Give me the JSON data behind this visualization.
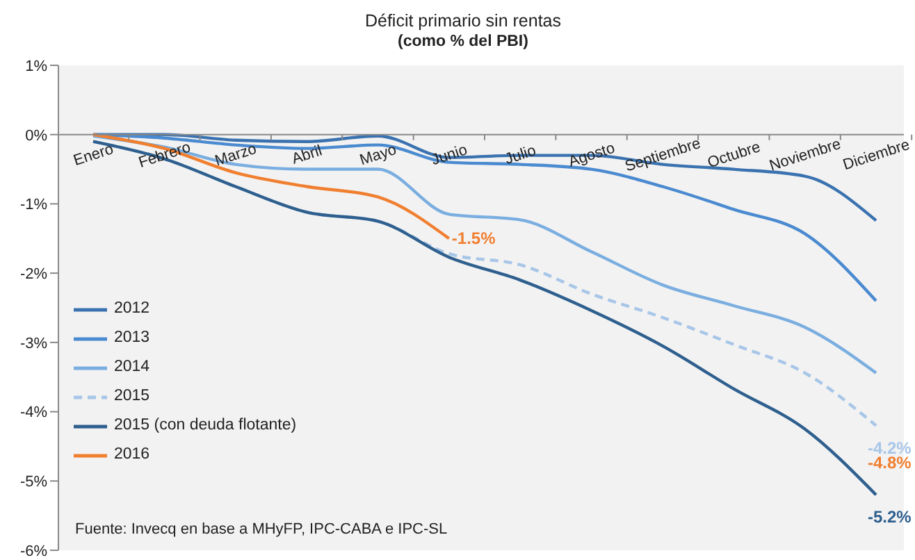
{
  "chart_data": {
    "type": "line",
    "title": "Déficit primario sin rentas",
    "subtitle": "(como % del PBI)",
    "categories": [
      "Enero",
      "Febrero",
      "Marzo",
      "Abril",
      "Mayo",
      "Junio",
      "Julio",
      "Agosto",
      "Septiembre",
      "Octubre",
      "Noviembre",
      "Diciembre"
    ],
    "series": [
      {
        "name": "2012",
        "color": "#3a72b0",
        "values": [
          0,
          0,
          -0.08,
          -0.1,
          -0.02,
          -0.33,
          -0.3,
          -0.3,
          -0.43,
          -0.5,
          -0.6,
          -1.24
        ]
      },
      {
        "name": "2013",
        "color": "#4a8ad0",
        "values": [
          0,
          -0.05,
          -0.15,
          -0.2,
          -0.15,
          -0.4,
          -0.43,
          -0.5,
          -0.75,
          -1.08,
          -1.43,
          -2.4
        ]
      },
      {
        "name": "2014",
        "color": "#7aaee0",
        "values": [
          -0.02,
          -0.18,
          -0.43,
          -0.5,
          -0.5,
          -1.15,
          -1.23,
          -1.69,
          -2.17,
          -2.47,
          -2.78,
          -3.44
        ]
      },
      {
        "name": "2015",
        "color": "#a8c6e8",
        "line_style": "dashed",
        "values": [
          -0.1,
          -0.35,
          -0.75,
          -1.12,
          -1.25,
          -1.72,
          -1.88,
          -2.3,
          -2.64,
          -3.03,
          -3.44,
          -4.2
        ],
        "value_labels": [
          null,
          null,
          null,
          null,
          null,
          null,
          null,
          null,
          null,
          null,
          null,
          "-4.2%"
        ]
      },
      {
        "name": "2015 (con deuda flotante)",
        "color": "#2e5f8e",
        "values": [
          -0.1,
          -0.35,
          -0.75,
          -1.12,
          -1.25,
          -1.77,
          -2.1,
          -2.54,
          -3.05,
          -3.67,
          -4.25,
          -5.2
        ],
        "value_labels": [
          null,
          null,
          null,
          null,
          null,
          null,
          null,
          null,
          null,
          null,
          null,
          "-5.2%"
        ]
      },
      {
        "name": "2016",
        "color": "#f07f30",
        "values": [
          0,
          -0.2,
          -0.55,
          -0.75,
          -0.9,
          -1.5,
          null,
          null,
          null,
          null,
          null,
          null
        ],
        "value_labels": [
          null,
          null,
          null,
          null,
          null,
          "-1.5%",
          null,
          null,
          null,
          null,
          null,
          null
        ]
      }
    ],
    "ylim": [
      -6,
      1
    ],
    "yticks": [
      {
        "value": 1,
        "label": "1%"
      },
      {
        "value": 0,
        "label": "0%"
      },
      {
        "value": -1,
        "label": "-1%"
      },
      {
        "value": -2,
        "label": "-2%"
      },
      {
        "value": -3,
        "label": "-3%"
      },
      {
        "value": -4,
        "label": "-4%"
      },
      {
        "value": -5,
        "label": "-5%"
      },
      {
        "value": -6,
        "label": "-6%"
      }
    ],
    "legend": "bottom left",
    "line_style": "solid",
    "marker": "none",
    "annotations": [
      "-4.8%",
      "Fuente: Invecq en base a MHyFP, IPC-CABA e IPC-SL"
    ]
  }
}
